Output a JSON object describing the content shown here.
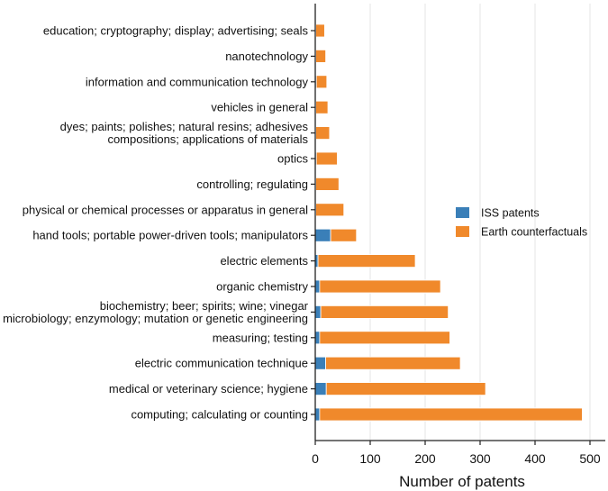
{
  "chart_data": {
    "type": "bar",
    "orientation": "horizontal",
    "stacked": true,
    "title": "",
    "xlabel": "Number of patents",
    "ylabel": "",
    "xlim": [
      0,
      530
    ],
    "xticks": [
      0,
      100,
      200,
      300,
      400,
      500
    ],
    "grid": "vertical",
    "legend_position": "right",
    "categories": [
      [
        "education; cryptography; display; advertising; seals"
      ],
      [
        "nanotechnology"
      ],
      [
        "information and communication technology"
      ],
      [
        "vehicles in general"
      ],
      [
        "dyes; paints; polishes; natural resins; adhesives",
        "compositions; applications of materials"
      ],
      [
        "optics"
      ],
      [
        "controlling; regulating"
      ],
      [
        "physical or chemical processes or apparatus in general"
      ],
      [
        "hand tools; portable power-driven tools; manipulators"
      ],
      [
        "electric elements"
      ],
      [
        "organic chemistry"
      ],
      [
        "biochemistry; beer; spirits; wine; vinegar",
        "microbiology; enzymology; mutation or genetic engineering"
      ],
      [
        "measuring; testing"
      ],
      [
        "electric communication technique"
      ],
      [
        "medical or veterinary science; hygiene"
      ],
      [
        "computing; calculating or counting"
      ]
    ],
    "series": [
      {
        "name": "ISS patents",
        "color": "#3a7fb8",
        "values": [
          1,
          1,
          2,
          1,
          1,
          2,
          1,
          1,
          28,
          5,
          8,
          10,
          8,
          19,
          20,
          8
        ]
      },
      {
        "name": "Earth counterfactuals",
        "color": "#f0892b",
        "values": [
          16,
          18,
          19,
          22,
          25,
          38,
          42,
          51,
          47,
          177,
          220,
          232,
          237,
          245,
          290,
          478
        ]
      }
    ]
  }
}
